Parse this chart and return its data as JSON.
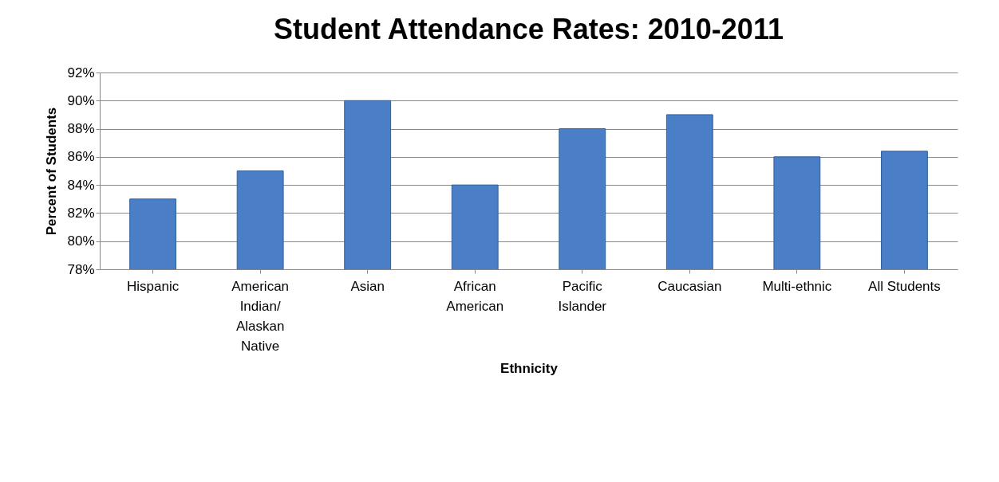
{
  "chart_data": {
    "type": "bar",
    "title": "Student Attendance Rates: 2010-2011",
    "xlabel": "Ethnicity",
    "ylabel": "Percent of Students",
    "categories": [
      "Hispanic",
      "American Indian/ Alaskan Native",
      "Asian",
      "African American",
      "Pacific Islander",
      "Caucasian",
      "Multi-ethnic",
      "All Students"
    ],
    "values": [
      83,
      85,
      90,
      84,
      88,
      89,
      86,
      86.4
    ],
    "color": "#4a7ec6",
    "ylim": [
      78,
      92
    ],
    "yticks": [
      {
        "value": 78,
        "label": "78%"
      },
      {
        "value": 80,
        "label": "80%"
      },
      {
        "value": 82,
        "label": "82%"
      },
      {
        "value": 84,
        "label": "84%"
      },
      {
        "value": 86,
        "label": "86%"
      },
      {
        "value": 88,
        "label": "88%"
      },
      {
        "value": 90,
        "label": "90%"
      },
      {
        "value": 92,
        "label": "92%"
      }
    ],
    "grid": "y"
  }
}
